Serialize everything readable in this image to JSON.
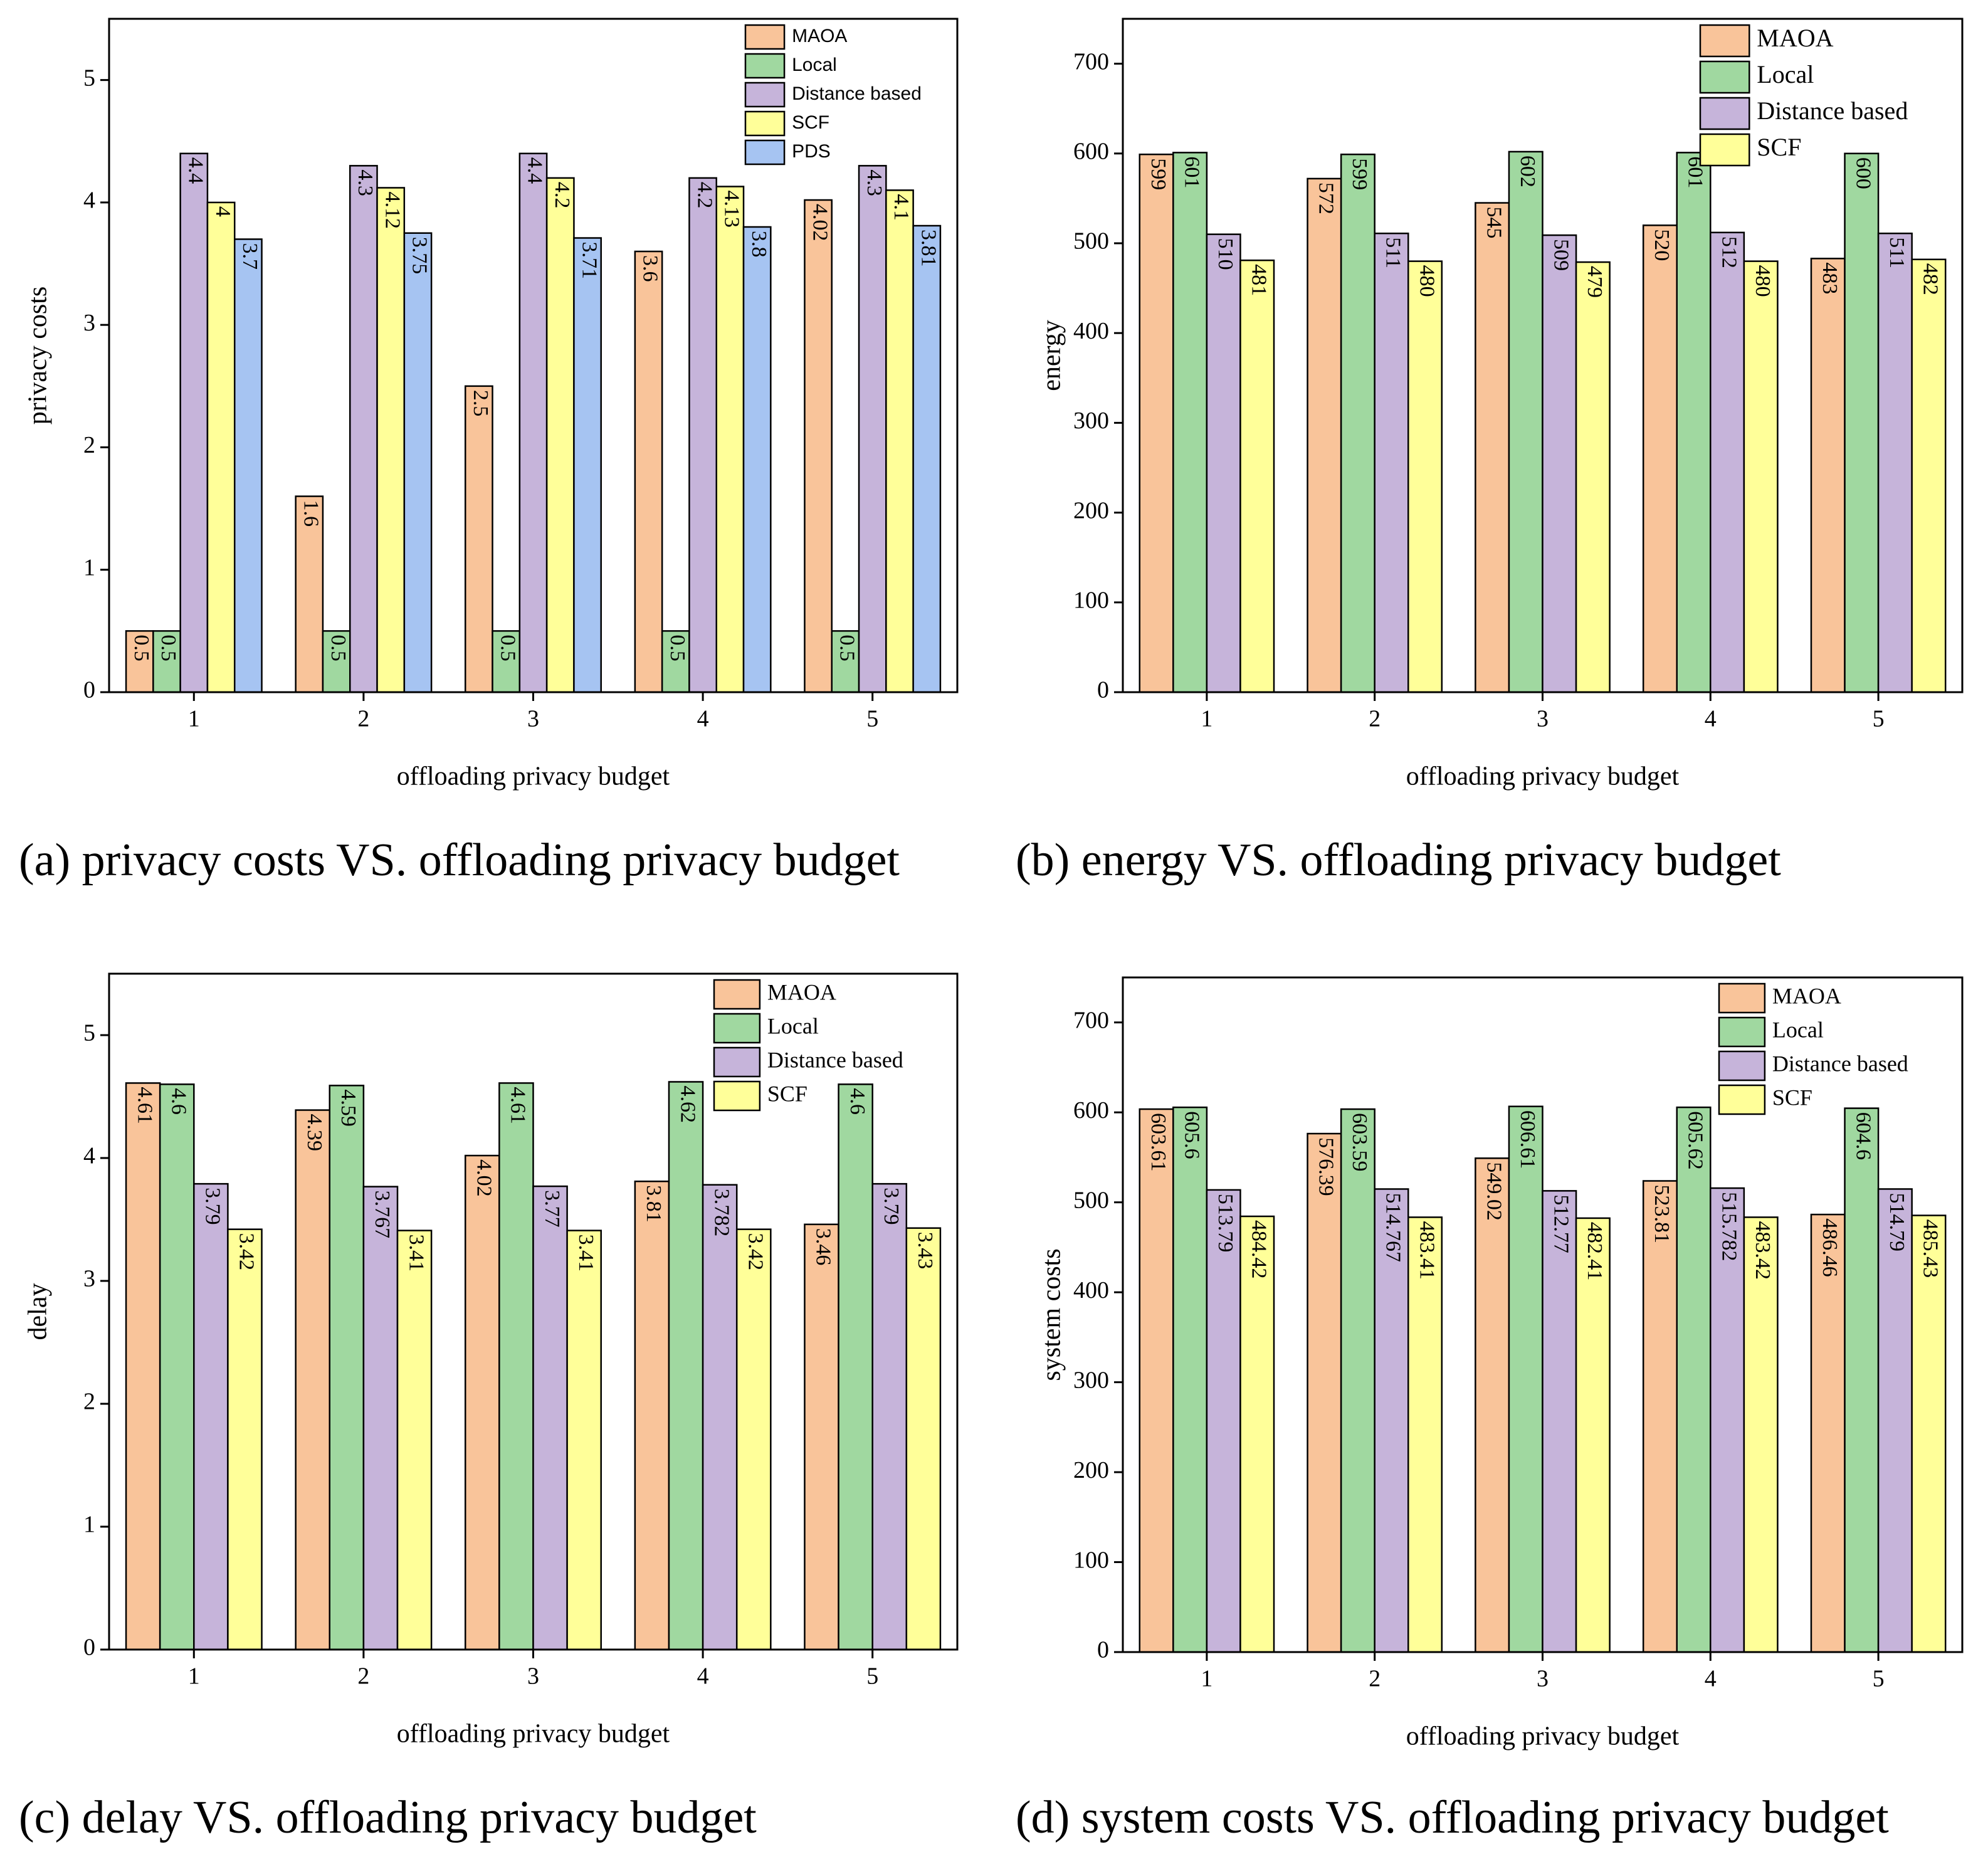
{
  "chart_data": [
    {
      "type": "bar",
      "caption": "(a) privacy costs VS. offloading privacy budget",
      "xlabel": "offloading privacy budget",
      "ylabel": "privacy costs",
      "categories": [
        "1",
        "2",
        "3",
        "4",
        "5"
      ],
      "ylim": [
        0,
        5.5
      ],
      "yticks": [
        0,
        1,
        2,
        3,
        4,
        5
      ],
      "legend": "upper right",
      "series": [
        {
          "name": "MAOA",
          "color": "#f9c49a",
          "values": [
            0.5,
            1.6,
            2.5,
            3.6,
            4.02
          ]
        },
        {
          "name": "Local",
          "color": "#a0d8a0",
          "values": [
            0.5,
            0.5,
            0.5,
            0.5,
            0.5
          ]
        },
        {
          "name": "Distance based",
          "color": "#c6b4da",
          "values": [
            4.4,
            4.3,
            4.4,
            4.2,
            4.3
          ]
        },
        {
          "name": "SCF",
          "color": "#ffff99",
          "values": [
            4,
            4.12,
            4.2,
            4.13,
            4.1
          ]
        },
        {
          "name": "PDS",
          "color": "#a6c4f2",
          "values": [
            3.7,
            3.75,
            3.71,
            3.8,
            3.81
          ]
        }
      ]
    },
    {
      "type": "bar",
      "caption": "(b) energy VS. offloading privacy budget",
      "xlabel": "offloading privacy budget",
      "ylabel": "energy",
      "categories": [
        "1",
        "2",
        "3",
        "4",
        "5"
      ],
      "ylim": [
        0,
        750
      ],
      "yticks": [
        0,
        100,
        200,
        300,
        400,
        500,
        600,
        700
      ],
      "legend": "upper right",
      "series": [
        {
          "name": "MAOA",
          "color": "#f9c49a",
          "values": [
            599,
            572,
            545,
            520,
            483
          ]
        },
        {
          "name": "Local",
          "color": "#a0d8a0",
          "values": [
            601,
            599,
            602,
            601,
            600
          ]
        },
        {
          "name": "Distance based",
          "color": "#c6b4da",
          "values": [
            510,
            511,
            509,
            512,
            511
          ]
        },
        {
          "name": "SCF",
          "color": "#ffff99",
          "values": [
            481,
            480,
            479,
            480,
            482
          ]
        }
      ]
    },
    {
      "type": "bar",
      "caption": "(c) delay VS. offloading privacy budget",
      "xlabel": "offloading privacy budget",
      "ylabel": "delay",
      "categories": [
        "1",
        "2",
        "3",
        "4",
        "5"
      ],
      "ylim": [
        0,
        5.5
      ],
      "yticks": [
        0,
        1,
        2,
        3,
        4,
        5
      ],
      "legend": "upper right",
      "series": [
        {
          "name": "MAOA",
          "color": "#f9c49a",
          "values": [
            4.61,
            4.39,
            4.02,
            3.81,
            3.46
          ]
        },
        {
          "name": "Local",
          "color": "#a0d8a0",
          "values": [
            4.6,
            4.59,
            4.61,
            4.62,
            4.6
          ]
        },
        {
          "name": "Distance based",
          "color": "#c6b4da",
          "values": [
            3.79,
            3.767,
            3.77,
            3.782,
            3.79
          ]
        },
        {
          "name": "SCF",
          "color": "#ffff99",
          "values": [
            3.42,
            3.41,
            3.41,
            3.42,
            3.43
          ]
        }
      ]
    },
    {
      "type": "bar",
      "caption": "(d) system costs VS. offloading privacy budget",
      "xlabel": "offloading privacy budget",
      "ylabel": "system costs",
      "categories": [
        "1",
        "2",
        "3",
        "4",
        "5"
      ],
      "ylim": [
        0,
        750
      ],
      "yticks": [
        0,
        100,
        200,
        300,
        400,
        500,
        600,
        700
      ],
      "legend": "upper right",
      "series": [
        {
          "name": "MAOA",
          "color": "#f9c49a",
          "values": [
            603.61,
            576.39,
            549.02,
            523.81,
            486.46
          ]
        },
        {
          "name": "Local",
          "color": "#a0d8a0",
          "values": [
            605.6,
            603.59,
            606.61,
            605.62,
            604.6
          ]
        },
        {
          "name": "Distance based",
          "color": "#c6b4da",
          "values": [
            513.79,
            514.767,
            512.77,
            515.782,
            514.79
          ]
        },
        {
          "name": "SCF",
          "color": "#ffff99",
          "values": [
            484.42,
            483.41,
            482.41,
            483.42,
            485.43
          ]
        }
      ]
    }
  ]
}
